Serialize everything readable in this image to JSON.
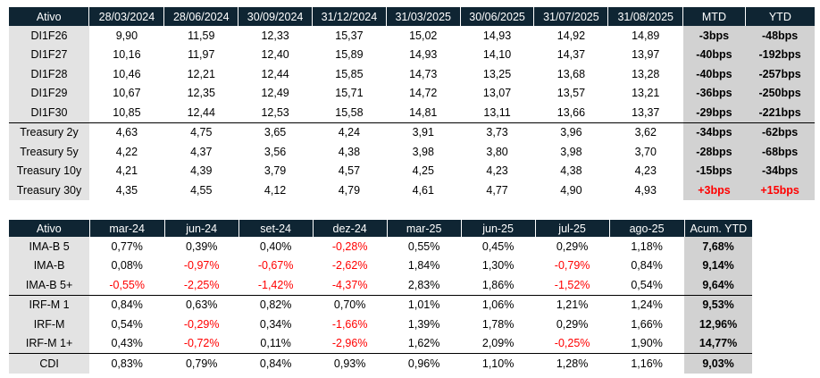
{
  "table1": {
    "headers": [
      "Ativo",
      "28/03/2024",
      "28/06/2024",
      "30/09/2024",
      "31/12/2024",
      "31/03/2025",
      "30/06/2025",
      "31/07/2025",
      "31/08/2025",
      "MTD",
      "YTD"
    ],
    "rows": [
      {
        "name": "DI1F26",
        "values": [
          "9,90",
          "11,59",
          "12,33",
          "15,37",
          "15,02",
          "14,93",
          "14,92",
          "14,89"
        ],
        "mtd": "-3bps",
        "ytd": "-48bps"
      },
      {
        "name": "DI1F27",
        "values": [
          "10,16",
          "11,97",
          "12,40",
          "15,89",
          "14,93",
          "14,10",
          "14,37",
          "13,97"
        ],
        "mtd": "-40bps",
        "ytd": "-192bps"
      },
      {
        "name": "DI1F28",
        "values": [
          "10,46",
          "12,21",
          "12,44",
          "15,85",
          "14,73",
          "13,25",
          "13,68",
          "13,28"
        ],
        "mtd": "-40bps",
        "ytd": "-257bps"
      },
      {
        "name": "DI1F29",
        "values": [
          "10,67",
          "12,35",
          "12,49",
          "15,71",
          "14,72",
          "13,07",
          "13,57",
          "13,21"
        ],
        "mtd": "-36bps",
        "ytd": "-250bps"
      },
      {
        "name": "DI1F30",
        "values": [
          "10,85",
          "12,44",
          "12,53",
          "15,58",
          "14,81",
          "13,11",
          "13,66",
          "13,37"
        ],
        "mtd": "-29bps",
        "ytd": "-221bps"
      },
      {
        "name": "Treasury 2y",
        "values": [
          "4,63",
          "4,75",
          "3,65",
          "4,24",
          "3,91",
          "3,73",
          "3,96",
          "3,62"
        ],
        "mtd": "-34bps",
        "ytd": "-62bps"
      },
      {
        "name": "Treasury 5y",
        "values": [
          "4,22",
          "4,37",
          "3,56",
          "4,38",
          "3,98",
          "3,80",
          "3,98",
          "3,70"
        ],
        "mtd": "-28bps",
        "ytd": "-68bps"
      },
      {
        "name": "Treasury 10y",
        "values": [
          "4,21",
          "4,39",
          "3,79",
          "4,57",
          "4,25",
          "4,23",
          "4,38",
          "4,23"
        ],
        "mtd": "-15bps",
        "ytd": "-34bps"
      },
      {
        "name": "Treasury 30y",
        "values": [
          "4,35",
          "4,55",
          "4,12",
          "4,79",
          "4,61",
          "4,77",
          "4,90",
          "4,93"
        ],
        "mtd": "+3bps",
        "ytd": "+15bps"
      }
    ]
  },
  "table2": {
    "headers": [
      "Ativo",
      "mar-24",
      "jun-24",
      "set-24",
      "dez-24",
      "mar-25",
      "jun-25",
      "jul-25",
      "ago-25",
      "Acum. YTD"
    ],
    "rows": [
      {
        "name": "IMA-B 5",
        "values": [
          "0,77%",
          "0,39%",
          "0,40%",
          "-0,28%",
          "0,55%",
          "0,45%",
          "0,29%",
          "1,18%"
        ],
        "acum": "7,68%"
      },
      {
        "name": "IMA-B",
        "values": [
          "0,08%",
          "-0,97%",
          "-0,67%",
          "-2,62%",
          "1,84%",
          "1,30%",
          "-0,79%",
          "0,84%"
        ],
        "acum": "9,14%"
      },
      {
        "name": "IMA-B 5+",
        "values": [
          "-0,55%",
          "-2,25%",
          "-1,42%",
          "-4,37%",
          "2,83%",
          "1,86%",
          "-1,52%",
          "0,54%"
        ],
        "acum": "9,64%"
      },
      {
        "name": "IRF-M 1",
        "values": [
          "0,84%",
          "0,63%",
          "0,82%",
          "0,70%",
          "1,01%",
          "1,06%",
          "1,21%",
          "1,24%"
        ],
        "acum": "9,53%"
      },
      {
        "name": "IRF-M",
        "values": [
          "0,54%",
          "-0,29%",
          "0,34%",
          "-1,66%",
          "1,39%",
          "1,78%",
          "0,29%",
          "1,66%"
        ],
        "acum": "12,96%"
      },
      {
        "name": "IRF-M 1+",
        "values": [
          "0,43%",
          "-0,72%",
          "0,11%",
          "-2,96%",
          "1,62%",
          "2,09%",
          "-0,25%",
          "1,90%"
        ],
        "acum": "14,77%"
      },
      {
        "name": "CDI",
        "values": [
          "0,83%",
          "0,79%",
          "0,84%",
          "0,93%",
          "0,96%",
          "1,10%",
          "1,28%",
          "1,16%"
        ],
        "acum": "9,03%"
      }
    ]
  },
  "colors": {
    "header_bg": "#0f2533",
    "label_bg": "#e3e3e3",
    "summary_bg": "#d2d2d2",
    "negative": "#ff0000"
  }
}
